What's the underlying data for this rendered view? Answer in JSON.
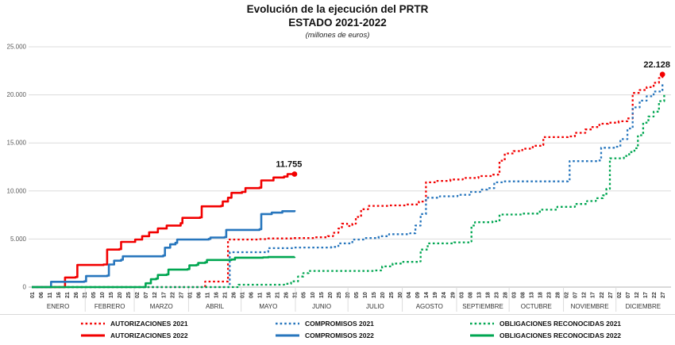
{
  "chart_data": {
    "type": "line",
    "title": "Evolución de la ejecución del PRTR",
    "subtitle": "ESTADO 2021-2022",
    "units_note": "(millones de euros)",
    "ylim": [
      0,
      25000
    ],
    "grid": true,
    "legend_position": "bottom",
    "y_ticks": [
      {
        "value": 0,
        "label": "0"
      },
      {
        "value": 5000,
        "label": "5.000"
      },
      {
        "value": 10000,
        "label": "10.000"
      },
      {
        "value": 15000,
        "label": "15.000"
      },
      {
        "value": 20000,
        "label": "20.000"
      },
      {
        "value": 25000,
        "label": "25.000"
      }
    ],
    "months": [
      {
        "name": "ENERO",
        "days": 31,
        "ticks": [
          "01",
          "06",
          "11",
          "16",
          "21",
          "26",
          "31"
        ]
      },
      {
        "name": "FEBRERO",
        "days": 28,
        "ticks": [
          "05",
          "10",
          "15",
          "20",
          "25"
        ]
      },
      {
        "name": "MARZO",
        "days": 31,
        "ticks": [
          "02",
          "07",
          "12",
          "17",
          "22",
          "27"
        ]
      },
      {
        "name": "ABRIL",
        "days": 30,
        "ticks": [
          "01",
          "06",
          "11",
          "16",
          "21",
          "26"
        ]
      },
      {
        "name": "MAYO",
        "days": 31,
        "ticks": [
          "01",
          "06",
          "11",
          "16",
          "21",
          "26",
          "31"
        ]
      },
      {
        "name": "JUNIO",
        "days": 30,
        "ticks": [
          "05",
          "10",
          "15",
          "20",
          "25",
          "30"
        ]
      },
      {
        "name": "JULIO",
        "days": 31,
        "ticks": [
          "05",
          "10",
          "15",
          "20",
          "25",
          "30"
        ]
      },
      {
        "name": "AGOSTO",
        "days": 31,
        "ticks": [
          "04",
          "09",
          "14",
          "19",
          "24",
          "29"
        ]
      },
      {
        "name": "SEPTIEMBRE",
        "days": 30,
        "ticks": [
          "03",
          "08",
          "13",
          "18",
          "23",
          "28"
        ]
      },
      {
        "name": "OCTUBRE",
        "days": 31,
        "ticks": [
          "03",
          "08",
          "13",
          "18",
          "23",
          "28"
        ]
      },
      {
        "name": "NOVIEMBRE",
        "days": 30,
        "ticks": [
          "02",
          "07",
          "12",
          "17",
          "22",
          "27"
        ]
      },
      {
        "name": "DICIEMBRE",
        "days": 31,
        "ticks": [
          "02",
          "07",
          "12",
          "17",
          "22",
          "27"
        ]
      }
    ],
    "series": [
      {
        "name": "AUTORIZACIONES 2021",
        "color": "#f20000",
        "dash": true,
        "end_label": "22.128",
        "end_marker": true,
        "points": [
          [
            1,
            0
          ],
          [
            99,
            0
          ],
          [
            100,
            580
          ],
          [
            112,
            580
          ],
          [
            113,
            4950
          ],
          [
            130,
            4990
          ],
          [
            136,
            5060
          ],
          [
            151,
            5100
          ],
          [
            162,
            5180
          ],
          [
            170,
            5300
          ],
          [
            173,
            5650
          ],
          [
            176,
            6100
          ],
          [
            178,
            6600
          ],
          [
            181,
            6350
          ],
          [
            184,
            6600
          ],
          [
            186,
            7300
          ],
          [
            189,
            8100
          ],
          [
            193,
            8450
          ],
          [
            205,
            8500
          ],
          [
            215,
            8600
          ],
          [
            222,
            8900
          ],
          [
            226,
            10900
          ],
          [
            232,
            11050
          ],
          [
            240,
            11200
          ],
          [
            247,
            11350
          ],
          [
            256,
            11550
          ],
          [
            264,
            11700
          ],
          [
            268,
            13150
          ],
          [
            271,
            13900
          ],
          [
            276,
            14150
          ],
          [
            281,
            14400
          ],
          [
            287,
            14700
          ],
          [
            292,
            14780
          ],
          [
            293,
            15600
          ],
          [
            307,
            15680
          ],
          [
            311,
            16050
          ],
          [
            317,
            16400
          ],
          [
            321,
            16650
          ],
          [
            325,
            17000
          ],
          [
            330,
            17100
          ],
          [
            336,
            17250
          ],
          [
            341,
            17550
          ],
          [
            344,
            20200
          ],
          [
            348,
            20500
          ],
          [
            352,
            20800
          ],
          [
            356,
            21250
          ],
          [
            359,
            21750
          ],
          [
            361,
            22128
          ]
        ]
      },
      {
        "name": "AUTORIZACIONES 2022",
        "color": "#f20000",
        "dash": false,
        "end_label": "11.755",
        "end_marker": true,
        "points": [
          [
            1,
            0
          ],
          [
            19,
            0
          ],
          [
            20,
            1000
          ],
          [
            26,
            1050
          ],
          [
            27,
            2300
          ],
          [
            42,
            2350
          ],
          [
            44,
            3900
          ],
          [
            51,
            3950
          ],
          [
            52,
            4700
          ],
          [
            60,
            4950
          ],
          [
            64,
            5300
          ],
          [
            68,
            5700
          ],
          [
            73,
            6100
          ],
          [
            78,
            6400
          ],
          [
            86,
            6650
          ],
          [
            87,
            7200
          ],
          [
            97,
            7250
          ],
          [
            98,
            8400
          ],
          [
            109,
            8450
          ],
          [
            110,
            8900
          ],
          [
            113,
            9300
          ],
          [
            115,
            9800
          ],
          [
            121,
            9900
          ],
          [
            123,
            10300
          ],
          [
            131,
            10350
          ],
          [
            132,
            11100
          ],
          [
            139,
            11400
          ],
          [
            145,
            11500
          ],
          [
            147,
            11755
          ],
          [
            151,
            11755
          ]
        ]
      },
      {
        "name": "COMPROMISOS 2021",
        "color": "#2776bd",
        "dash": true,
        "end_label": null,
        "end_marker": false,
        "points": [
          [
            1,
            0
          ],
          [
            113,
            0
          ],
          [
            114,
            3630
          ],
          [
            135,
            3660
          ],
          [
            136,
            4050
          ],
          [
            151,
            4120
          ],
          [
            172,
            4180
          ],
          [
            176,
            4550
          ],
          [
            184,
            4950
          ],
          [
            191,
            5100
          ],
          [
            199,
            5300
          ],
          [
            205,
            5500
          ],
          [
            217,
            5600
          ],
          [
            220,
            6400
          ],
          [
            223,
            7600
          ],
          [
            226,
            9300
          ],
          [
            234,
            9450
          ],
          [
            244,
            9600
          ],
          [
            251,
            9900
          ],
          [
            257,
            10150
          ],
          [
            261,
            10300
          ],
          [
            265,
            10900
          ],
          [
            270,
            11000
          ],
          [
            307,
            11080
          ],
          [
            308,
            13100
          ],
          [
            324,
            13180
          ],
          [
            326,
            14500
          ],
          [
            334,
            14600
          ],
          [
            337,
            15400
          ],
          [
            341,
            16500
          ],
          [
            344,
            18700
          ],
          [
            348,
            19400
          ],
          [
            352,
            19850
          ],
          [
            356,
            20350
          ],
          [
            361,
            21100
          ]
        ]
      },
      {
        "name": "COMPROMISOS 2022",
        "color": "#2776bd",
        "dash": false,
        "end_label": null,
        "end_marker": false,
        "points": [
          [
            1,
            0
          ],
          [
            11,
            0
          ],
          [
            12,
            550
          ],
          [
            31,
            600
          ],
          [
            32,
            1150
          ],
          [
            44,
            1200
          ],
          [
            45,
            2350
          ],
          [
            48,
            2750
          ],
          [
            52,
            2850
          ],
          [
            53,
            3200
          ],
          [
            76,
            3280
          ],
          [
            77,
            4100
          ],
          [
            80,
            4450
          ],
          [
            83,
            4600
          ],
          [
            84,
            4950
          ],
          [
            102,
            5020
          ],
          [
            103,
            5160
          ],
          [
            111,
            5200
          ],
          [
            112,
            5950
          ],
          [
            131,
            6020
          ],
          [
            132,
            7600
          ],
          [
            138,
            7750
          ],
          [
            144,
            7900
          ],
          [
            151,
            8000
          ]
        ]
      },
      {
        "name": "OBLIGACIONES RECONOCIDAS 2021",
        "color": "#00a651",
        "dash": true,
        "end_label": null,
        "end_marker": false,
        "points": [
          [
            1,
            0
          ],
          [
            118,
            0
          ],
          [
            119,
            250
          ],
          [
            145,
            350
          ],
          [
            149,
            600
          ],
          [
            153,
            1100
          ],
          [
            156,
            1450
          ],
          [
            159,
            1680
          ],
          [
            196,
            1730
          ],
          [
            201,
            2150
          ],
          [
            207,
            2450
          ],
          [
            213,
            2620
          ],
          [
            222,
            2680
          ],
          [
            223,
            3900
          ],
          [
            227,
            4550
          ],
          [
            242,
            4650
          ],
          [
            251,
            4750
          ],
          [
            252,
            6400
          ],
          [
            254,
            6750
          ],
          [
            264,
            6850
          ],
          [
            268,
            7550
          ],
          [
            281,
            7650
          ],
          [
            291,
            8050
          ],
          [
            301,
            8350
          ],
          [
            311,
            8650
          ],
          [
            318,
            8950
          ],
          [
            323,
            9250
          ],
          [
            327,
            9550
          ],
          [
            329,
            10230
          ],
          [
            331,
            13400
          ],
          [
            339,
            13650
          ],
          [
            342,
            14050
          ],
          [
            345,
            14450
          ],
          [
            347,
            15800
          ],
          [
            350,
            17100
          ],
          [
            353,
            17750
          ],
          [
            356,
            18250
          ],
          [
            359,
            19350
          ],
          [
            362,
            20000
          ]
        ]
      },
      {
        "name": "OBLIGACIONES RECONOCIDAS 2022",
        "color": "#00a651",
        "dash": false,
        "end_label": null,
        "end_marker": false,
        "points": [
          [
            1,
            0
          ],
          [
            63,
            0
          ],
          [
            66,
            400
          ],
          [
            69,
            820
          ],
          [
            72,
            880
          ],
          [
            73,
            1260
          ],
          [
            78,
            1320
          ],
          [
            79,
            1820
          ],
          [
            90,
            1870
          ],
          [
            91,
            2260
          ],
          [
            95,
            2320
          ],
          [
            96,
            2520
          ],
          [
            100,
            2580
          ],
          [
            101,
            2820
          ],
          [
            115,
            2870
          ],
          [
            117,
            3060
          ],
          [
            133,
            3090
          ],
          [
            136,
            3130
          ],
          [
            151,
            3150
          ]
        ]
      }
    ],
    "colors": {
      "autorizaciones": "#f20000",
      "compromisos": "#2776bd",
      "obligaciones": "#00a651",
      "gridline": "#dcdcdc",
      "axis": "#b3b3b3",
      "tick_text": "#333333",
      "ytick_text": "#595959"
    }
  }
}
